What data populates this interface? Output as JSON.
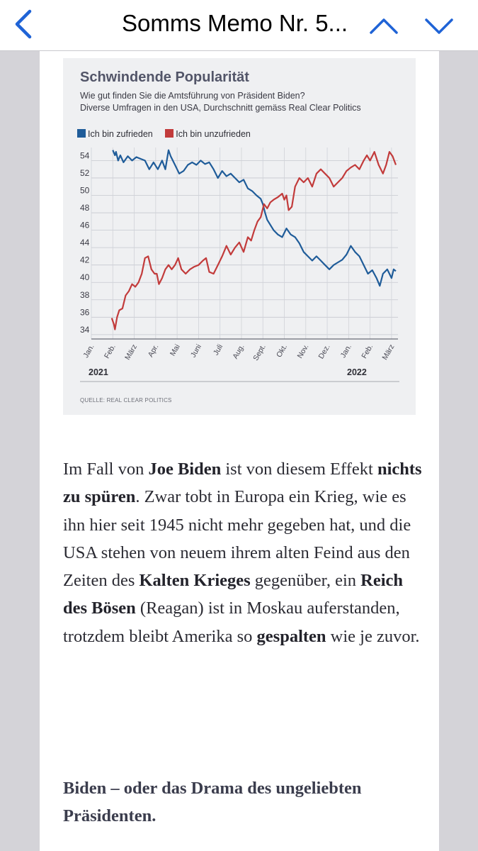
{
  "nav": {
    "title": "Somms Memo Nr. 5...",
    "back_icon": "chevron-left-icon",
    "prev_icon": "chevron-up-icon",
    "next_icon": "chevron-down-icon",
    "accent": "#1f63d6"
  },
  "chart": {
    "heading": "Schwindende Popularität",
    "subtitle_1": "Wie gut finden Sie die Amtsführung von Präsident Biden?",
    "subtitle_2": "Diverse Umfragen in den USA, Durchschnitt gemäss Real Clear Politics",
    "source": "QUELLE: REAL CLEAR POLITICS"
  },
  "chart_data": {
    "type": "line",
    "title": "Schwindende Popularität",
    "x_tick_labels": [
      "Jan.",
      "Feb.",
      "März",
      "Apr.",
      "Mai",
      "Juni",
      "Juli",
      "Aug.",
      "Sept.",
      "Okt.",
      "Nov.",
      "Dez.",
      "Jan.",
      "Feb.",
      "März"
    ],
    "year_labels": [
      "2021",
      "2022"
    ],
    "y_ticks": [
      34,
      36,
      38,
      40,
      42,
      44,
      46,
      48,
      50,
      52,
      54
    ],
    "ylim": [
      33.5,
      55.5
    ],
    "xlim": [
      0,
      14.3
    ],
    "grid": true,
    "legend_position": "top-left",
    "series": [
      {
        "name": "Ich bin zufrieden",
        "color": "#1f5c99",
        "points": [
          [
            1.0,
            55.2
          ],
          [
            1.1,
            54.6
          ],
          [
            1.15,
            55.0
          ],
          [
            1.25,
            54.0
          ],
          [
            1.35,
            54.6
          ],
          [
            1.5,
            53.8
          ],
          [
            1.7,
            54.5
          ],
          [
            1.9,
            54.0
          ],
          [
            2.1,
            54.4
          ],
          [
            2.3,
            54.2
          ],
          [
            2.5,
            54.0
          ],
          [
            2.7,
            53.0
          ],
          [
            2.9,
            53.8
          ],
          [
            3.1,
            53.0
          ],
          [
            3.3,
            54.0
          ],
          [
            3.45,
            53.0
          ],
          [
            3.6,
            55.2
          ],
          [
            3.7,
            54.5
          ],
          [
            3.9,
            53.5
          ],
          [
            4.1,
            52.5
          ],
          [
            4.3,
            52.8
          ],
          [
            4.5,
            53.5
          ],
          [
            4.7,
            53.8
          ],
          [
            4.9,
            53.5
          ],
          [
            5.1,
            54.0
          ],
          [
            5.3,
            53.6
          ],
          [
            5.5,
            53.8
          ],
          [
            5.7,
            53.0
          ],
          [
            5.9,
            52.0
          ],
          [
            6.1,
            52.8
          ],
          [
            6.3,
            52.2
          ],
          [
            6.5,
            52.5
          ],
          [
            6.7,
            52.0
          ],
          [
            6.9,
            51.5
          ],
          [
            7.1,
            51.8
          ],
          [
            7.3,
            50.8
          ],
          [
            7.5,
            50.5
          ],
          [
            7.7,
            50.0
          ],
          [
            7.9,
            49.6
          ],
          [
            8.0,
            49.0
          ],
          [
            8.1,
            48.0
          ],
          [
            8.2,
            47.2
          ],
          [
            8.35,
            46.6
          ],
          [
            8.5,
            46.0
          ],
          [
            8.7,
            45.5
          ],
          [
            8.9,
            45.2
          ],
          [
            9.1,
            46.2
          ],
          [
            9.3,
            45.5
          ],
          [
            9.5,
            45.2
          ],
          [
            9.7,
            44.5
          ],
          [
            9.9,
            43.5
          ],
          [
            10.1,
            43.0
          ],
          [
            10.3,
            42.5
          ],
          [
            10.5,
            43.0
          ],
          [
            10.7,
            42.5
          ],
          [
            10.9,
            42.0
          ],
          [
            11.1,
            41.5
          ],
          [
            11.3,
            42.0
          ],
          [
            11.5,
            42.3
          ],
          [
            11.7,
            42.6
          ],
          [
            11.9,
            43.2
          ],
          [
            12.1,
            44.2
          ],
          [
            12.3,
            43.5
          ],
          [
            12.5,
            43.0
          ],
          [
            12.7,
            42.0
          ],
          [
            12.9,
            41.0
          ],
          [
            13.1,
            41.4
          ],
          [
            13.3,
            40.5
          ],
          [
            13.45,
            39.6
          ],
          [
            13.6,
            41.0
          ],
          [
            13.8,
            41.5
          ],
          [
            14.0,
            40.5
          ],
          [
            14.1,
            41.5
          ],
          [
            14.2,
            41.3
          ]
        ]
      },
      {
        "name": "Ich bin unzufrieden",
        "color": "#c23b3b",
        "points": [
          [
            0.95,
            35.9
          ],
          [
            1.05,
            35.2
          ],
          [
            1.1,
            34.6
          ],
          [
            1.2,
            36.0
          ],
          [
            1.3,
            36.8
          ],
          [
            1.45,
            37.0
          ],
          [
            1.6,
            38.5
          ],
          [
            1.75,
            39.0
          ],
          [
            1.9,
            39.8
          ],
          [
            2.05,
            39.5
          ],
          [
            2.2,
            40.0
          ],
          [
            2.35,
            41.0
          ],
          [
            2.5,
            42.8
          ],
          [
            2.65,
            43.0
          ],
          [
            2.8,
            41.5
          ],
          [
            2.95,
            41.0
          ],
          [
            3.05,
            41.0
          ],
          [
            3.15,
            39.8
          ],
          [
            3.3,
            40.5
          ],
          [
            3.45,
            41.5
          ],
          [
            3.6,
            42.0
          ],
          [
            3.75,
            41.5
          ],
          [
            3.9,
            42.0
          ],
          [
            4.05,
            42.8
          ],
          [
            4.2,
            41.5
          ],
          [
            4.4,
            41.0
          ],
          [
            4.6,
            41.5
          ],
          [
            4.8,
            41.8
          ],
          [
            5.0,
            42.0
          ],
          [
            5.2,
            42.5
          ],
          [
            5.35,
            42.8
          ],
          [
            5.5,
            41.2
          ],
          [
            5.7,
            41.0
          ],
          [
            5.9,
            42.0
          ],
          [
            6.1,
            43.0
          ],
          [
            6.3,
            44.2
          ],
          [
            6.5,
            43.2
          ],
          [
            6.7,
            44.0
          ],
          [
            6.9,
            44.6
          ],
          [
            7.1,
            43.5
          ],
          [
            7.3,
            45.2
          ],
          [
            7.45,
            44.8
          ],
          [
            7.6,
            46.0
          ],
          [
            7.75,
            47.0
          ],
          [
            7.9,
            47.5
          ],
          [
            8.05,
            49.0
          ],
          [
            8.2,
            48.5
          ],
          [
            8.35,
            49.2
          ],
          [
            8.5,
            49.5
          ],
          [
            8.7,
            49.8
          ],
          [
            8.9,
            50.2
          ],
          [
            9.0,
            49.5
          ],
          [
            9.1,
            50.0
          ],
          [
            9.2,
            48.3
          ],
          [
            9.35,
            48.7
          ],
          [
            9.5,
            51.0
          ],
          [
            9.7,
            52.0
          ],
          [
            9.9,
            51.5
          ],
          [
            10.1,
            52.0
          ],
          [
            10.3,
            51.0
          ],
          [
            10.5,
            52.5
          ],
          [
            10.7,
            53.0
          ],
          [
            10.9,
            52.5
          ],
          [
            11.1,
            52.0
          ],
          [
            11.3,
            51.0
          ],
          [
            11.5,
            51.5
          ],
          [
            11.7,
            52.0
          ],
          [
            11.9,
            52.8
          ],
          [
            12.1,
            53.2
          ],
          [
            12.3,
            53.5
          ],
          [
            12.5,
            53.0
          ],
          [
            12.7,
            54.0
          ],
          [
            12.85,
            54.6
          ],
          [
            13.0,
            54.0
          ],
          [
            13.2,
            55.0
          ],
          [
            13.4,
            53.5
          ],
          [
            13.6,
            52.5
          ],
          [
            13.75,
            53.5
          ],
          [
            13.9,
            55.0
          ],
          [
            14.05,
            54.5
          ],
          [
            14.2,
            53.5
          ]
        ]
      }
    ]
  },
  "article": {
    "p1_a": "Im Fall von ",
    "p1_b1": "Joe Biden",
    "p1_c": " ist von diesem Effekt ",
    "p1_b2": "nichts zu spüren",
    "p1_d": ". Zwar tobt in Europa ein Krieg, wie es ihn hier seit 1945 nicht mehr gegeben hat, und die USA stehen von neuem ihrem alten Feind aus den Zeiten des ",
    "p1_b3": "Kalten Krieges",
    "p1_e": " gegenüber, ein ",
    "p1_b4": "Reich des Bösen",
    "p1_f": " (Reagan) ist in Moskau auferstanden, trotzdem bleibt Amerika so ",
    "p1_b5": "gespalten",
    "p1_g": " wie je zuvor.",
    "heading": "Biden – oder das Drama des ungeliebten Präsidenten."
  }
}
